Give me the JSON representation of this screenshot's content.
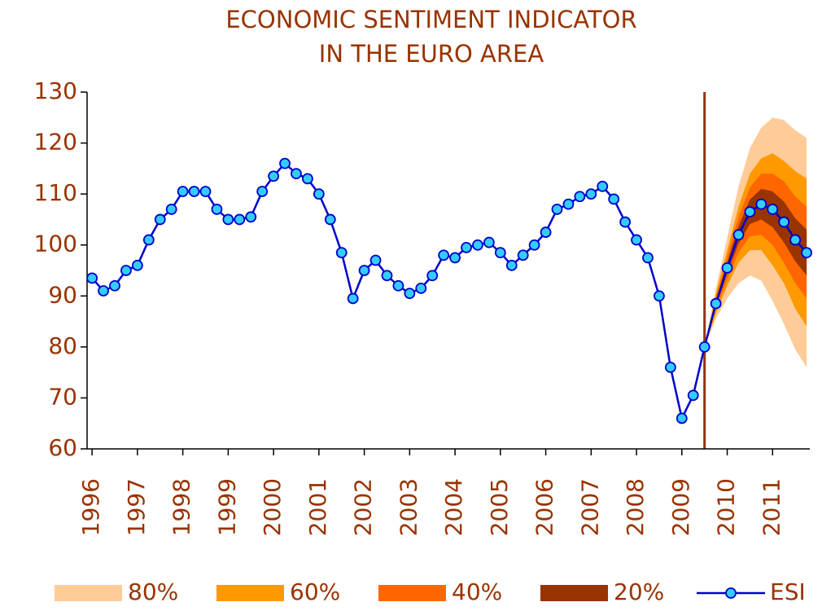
{
  "chart_data": {
    "type": "line",
    "title": [
      "ECONOMIC SENTIMENT INDICATOR",
      "IN THE EURO AREA"
    ],
    "x": [
      1996,
      1996.25,
      1996.5,
      1996.75,
      1997,
      1997.25,
      1997.5,
      1997.75,
      1998,
      1998.25,
      1998.5,
      1998.75,
      1999,
      1999.25,
      1999.5,
      1999.75,
      2000,
      2000.25,
      2000.5,
      2000.75,
      2001,
      2001.25,
      2001.5,
      2001.75,
      2002,
      2002.25,
      2002.5,
      2002.75,
      2003,
      2003.25,
      2003.5,
      2003.75,
      2004,
      2004.25,
      2004.5,
      2004.75,
      2005,
      2005.25,
      2005.5,
      2005.75,
      2006,
      2006.25,
      2006.5,
      2006.75,
      2007,
      2007.25,
      2007.5,
      2007.75,
      2008,
      2008.25,
      2008.5,
      2008.75,
      2009,
      2009.25,
      2009.5,
      2009.75,
      2010,
      2010.25,
      2010.5,
      2010.75,
      2011,
      2011.25,
      2011.5,
      2011.75
    ],
    "series": [
      {
        "name": "ESI",
        "color": "#0000cc",
        "marker_color": "#33ccff",
        "values": [
          93.5,
          91,
          92,
          95,
          96,
          101,
          105,
          107,
          110.5,
          110.5,
          110.5,
          107,
          105,
          105,
          105.5,
          110.5,
          113.5,
          116,
          114,
          113,
          110,
          105,
          98.5,
          89.5,
          95,
          97,
          94,
          92,
          90.5,
          91.5,
          94,
          98,
          97.5,
          99.5,
          100,
          100.5,
          98.5,
          96,
          98,
          100,
          102.5,
          107,
          108,
          109.5,
          110,
          111.5,
          109,
          104.5,
          101,
          97.5,
          90,
          76,
          66,
          70.5,
          80,
          88.5,
          95.5,
          102,
          106.5,
          108,
          107,
          104.5,
          101,
          98.5
        ]
      }
    ],
    "fan": [
      {
        "name": "80%",
        "color": "#ffcc99",
        "x": [
          2009.5,
          2009.75,
          2010,
          2010.25,
          2010.5,
          2010.75,
          2011,
          2011.25,
          2011.5,
          2011.75
        ],
        "upper": [
          80,
          91.5,
          101.5,
          111.5,
          119,
          123,
          125,
          124.5,
          122.5,
          121
        ],
        "lower": [
          80,
          85.5,
          89.5,
          92.5,
          94,
          93,
          89,
          84.5,
          79.5,
          76
        ]
      },
      {
        "name": "60%",
        "color": "#ff9900",
        "x": [
          2009.5,
          2009.75,
          2010,
          2010.25,
          2010.5,
          2010.75,
          2011,
          2011.25,
          2011.5,
          2011.75
        ],
        "upper": [
          80,
          90.5,
          99,
          107.5,
          114,
          117,
          118,
          116.5,
          114.5,
          113
        ],
        "lower": [
          80,
          86.5,
          92,
          96.5,
          99,
          99,
          96,
          92.5,
          87.5,
          84
        ]
      },
      {
        "name": "40%",
        "color": "#ff6600",
        "x": [
          2009.5,
          2009.75,
          2010,
          2010.25,
          2010.5,
          2010.75,
          2011,
          2011.25,
          2011.5,
          2011.75
        ],
        "upper": [
          80,
          89.7,
          97.8,
          105.5,
          111.3,
          114,
          114,
          112.5,
          109.5,
          107.5
        ],
        "lower": [
          80,
          87.3,
          93.2,
          98.5,
          101.7,
          102,
          100,
          96.5,
          92.5,
          89.5
        ]
      },
      {
        "name": "20%",
        "color": "#993300",
        "x": [
          2009.5,
          2009.75,
          2010,
          2010.25,
          2010.5,
          2010.75,
          2011,
          2011.25,
          2011.5,
          2011.75
        ],
        "upper": [
          80,
          89.1,
          96.6,
          103.7,
          108.9,
          111,
          110.5,
          108.5,
          105.2,
          103
        ],
        "lower": [
          80,
          87.9,
          94.4,
          100.3,
          104.1,
          105,
          103.5,
          100.5,
          96.8,
          94
        ]
      }
    ],
    "forecast_start": 2009.5,
    "forecast_line_color": "#993300",
    "text_color": "#993300",
    "xlim": [
      1995.89,
      2011.82
    ],
    "xticks": [
      1996,
      1997,
      1998,
      1999,
      2000,
      2001,
      2002,
      2003,
      2004,
      2005,
      2006,
      2007,
      2008,
      2009,
      2010,
      2011
    ],
    "ylim": [
      60,
      130
    ],
    "yticks": [
      60,
      70,
      80,
      90,
      100,
      110,
      120,
      130
    ],
    "grid": false
  }
}
